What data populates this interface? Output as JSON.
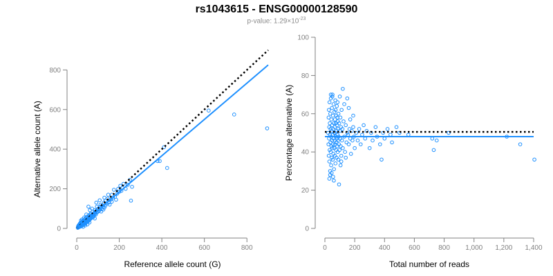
{
  "header": {
    "title": "rs1043615 - ENSG00000128590",
    "pvalue_prefix": "p-value: 1.29×10",
    "pvalue_exp": "-23"
  },
  "colors": {
    "points": "#1e90ff",
    "fit_line": "#1e90ff",
    "reference_line": "#000000",
    "axis": "#808080"
  },
  "chart_data": [
    {
      "type": "scatter",
      "title": "",
      "xlabel": "Reference allele count (G)",
      "ylabel": "Alternative allele count (A)",
      "xlim": [
        0,
        900
      ],
      "ylim": [
        0,
        850
      ],
      "xticks": [
        0,
        200,
        400,
        600,
        800
      ],
      "yticks": [
        0,
        200,
        400,
        600,
        800
      ],
      "xtick_labels": [
        "0",
        "200",
        "400",
        "600",
        "800"
      ],
      "ytick_labels": [
        "0",
        "200",
        "400",
        "600",
        "800"
      ],
      "reference_line": {
        "style": "dotted",
        "x": [
          0,
          900
        ],
        "y": [
          0,
          900
        ]
      },
      "fit_line": {
        "style": "solid",
        "x": [
          0,
          900
        ],
        "y": [
          0,
          825
        ]
      },
      "points": [
        [
          5,
          3
        ],
        [
          6,
          8
        ],
        [
          7,
          12
        ],
        [
          8,
          5
        ],
        [
          9,
          15
        ],
        [
          10,
          10
        ],
        [
          11,
          18
        ],
        [
          12,
          7
        ],
        [
          13,
          20
        ],
        [
          14,
          12
        ],
        [
          15,
          25
        ],
        [
          16,
          9
        ],
        [
          17,
          14
        ],
        [
          18,
          22
        ],
        [
          19,
          30
        ],
        [
          20,
          16
        ],
        [
          21,
          11
        ],
        [
          22,
          27
        ],
        [
          23,
          19
        ],
        [
          24,
          33
        ],
        [
          25,
          14
        ],
        [
          26,
          24
        ],
        [
          27,
          36
        ],
        [
          28,
          21
        ],
        [
          29,
          17
        ],
        [
          30,
          29
        ],
        [
          31,
          40
        ],
        [
          32,
          25
        ],
        [
          33,
          20
        ],
        [
          34,
          38
        ],
        [
          35,
          30
        ],
        [
          36,
          45
        ],
        [
          37,
          28
        ],
        [
          38,
          22
        ],
        [
          39,
          35
        ],
        [
          40,
          50
        ],
        [
          41,
          33
        ],
        [
          42,
          26
        ],
        [
          43,
          42
        ],
        [
          44,
          37
        ],
        [
          45,
          55
        ],
        [
          46,
          31
        ],
        [
          47,
          40
        ],
        [
          48,
          48
        ],
        [
          49,
          36
        ],
        [
          50,
          60
        ],
        [
          51,
          43
        ],
        [
          52,
          34
        ],
        [
          53,
          52
        ],
        [
          54,
          46
        ],
        [
          55,
          38
        ],
        [
          56,
          58
        ],
        [
          57,
          49
        ],
        [
          58,
          41
        ],
        [
          59,
          65
        ],
        [
          60,
          53
        ],
        [
          61,
          45
        ],
        [
          62,
          70
        ],
        [
          63,
          56
        ],
        [
          64,
          48
        ],
        [
          65,
          62
        ],
        [
          66,
          75
        ],
        [
          67,
          51
        ],
        [
          68,
          59
        ],
        [
          70,
          64
        ],
        [
          72,
          55
        ],
        [
          74,
          68
        ],
        [
          75,
          85
        ],
        [
          76,
          60
        ],
        [
          78,
          72
        ],
        [
          80,
          66
        ],
        [
          82,
          78
        ],
        [
          84,
          70
        ],
        [
          85,
          92
        ],
        [
          86,
          75
        ],
        [
          88,
          82
        ],
        [
          90,
          70
        ],
        [
          92,
          88
        ],
        [
          95,
          80
        ],
        [
          98,
          95
        ],
        [
          100,
          85
        ],
        [
          102,
          100
        ],
        [
          105,
          90
        ],
        [
          108,
          108
        ],
        [
          110,
          95
        ],
        [
          112,
          120
        ],
        [
          115,
          105
        ],
        [
          118,
          98
        ],
        [
          120,
          115
        ],
        [
          125,
          110
        ],
        [
          128,
          130
        ],
        [
          130,
          105
        ],
        [
          135,
          140
        ],
        [
          140,
          125
        ],
        [
          145,
          150
        ],
        [
          150,
          130
        ],
        [
          155,
          120
        ],
        [
          160,
          145
        ],
        [
          165,
          170
        ],
        [
          170,
          155
        ],
        [
          175,
          195
        ],
        [
          180,
          160
        ],
        [
          185,
          145
        ],
        [
          190,
          175
        ],
        [
          195,
          200
        ],
        [
          200,
          185
        ],
        [
          205,
          215
        ],
        [
          210,
          190
        ],
        [
          215,
          205
        ],
        [
          220,
          225
        ],
        [
          230,
          200
        ],
        [
          240,
          220
        ],
        [
          250,
          245
        ],
        [
          255,
          140
        ],
        [
          260,
          210
        ],
        [
          55,
          110
        ],
        [
          62,
          92
        ],
        [
          72,
          100
        ],
        [
          78,
          58
        ],
        [
          92,
          130
        ],
        [
          108,
          142
        ],
        [
          125,
          95
        ],
        [
          148,
          170
        ],
        [
          60,
          30
        ],
        [
          45,
          70
        ],
        [
          35,
          55
        ],
        [
          85,
          50
        ],
        [
          95,
          110
        ],
        [
          115,
          85
        ],
        [
          135,
          115
        ],
        [
          30,
          8
        ],
        [
          40,
          15
        ],
        [
          50,
          20
        ],
        [
          20,
          40
        ],
        [
          25,
          45
        ],
        [
          130,
          155
        ],
        [
          165,
          135
        ],
        [
          380,
          340
        ],
        [
          390,
          340
        ],
        [
          410,
          410
        ],
        [
          425,
          305
        ],
        [
          620,
          595
        ],
        [
          740,
          575
        ],
        [
          895,
          505
        ]
      ]
    },
    {
      "type": "scatter",
      "title": "",
      "xlabel": "Total number of reads",
      "ylabel": "Percentage alternative (A)",
      "xlim": [
        0,
        1400
      ],
      "ylim": [
        0,
        100
      ],
      "xticks": [
        0,
        200,
        400,
        600,
        800,
        1000,
        1200,
        1400
      ],
      "yticks": [
        0,
        20,
        40,
        60,
        80,
        100
      ],
      "xtick_labels": [
        "0",
        "200",
        "400",
        "600",
        "800",
        "1,000",
        "1,200",
        "1,400"
      ],
      "ytick_labels": [
        "0",
        "20",
        "40",
        "60",
        "80",
        "100"
      ],
      "reference_line": {
        "style": "dotted",
        "y": 50.5
      },
      "fit_line": {
        "style": "solid",
        "y": 48
      },
      "points": [
        [
          22,
          50
        ],
        [
          24,
          44
        ],
        [
          25,
          58
        ],
        [
          26,
          38
        ],
        [
          27,
          62
        ],
        [
          28,
          47
        ],
        [
          29,
          53
        ],
        [
          30,
          35
        ],
        [
          31,
          66
        ],
        [
          32,
          41
        ],
        [
          33,
          55
        ],
        [
          34,
          49
        ],
        [
          35,
          30
        ],
        [
          36,
          60
        ],
        [
          37,
          45
        ],
        [
          38,
          52
        ],
        [
          39,
          40
        ],
        [
          40,
          68
        ],
        [
          41,
          48
        ],
        [
          42,
          33
        ],
        [
          43,
          57
        ],
        [
          44,
          43
        ],
        [
          45,
          51
        ],
        [
          46,
          37
        ],
        [
          47,
          63
        ],
        [
          48,
          46
        ],
        [
          49,
          54
        ],
        [
          50,
          42
        ],
        [
          51,
          70
        ],
        [
          52,
          49
        ],
        [
          53,
          36
        ],
        [
          54,
          59
        ],
        [
          55,
          44
        ],
        [
          56,
          52
        ],
        [
          57,
          39
        ],
        [
          58,
          65
        ],
        [
          59,
          47
        ],
        [
          60,
          55
        ],
        [
          61,
          31
        ],
        [
          62,
          50
        ],
        [
          63,
          42
        ],
        [
          64,
          61
        ],
        [
          65,
          46
        ],
        [
          66,
          53
        ],
        [
          67,
          38
        ],
        [
          68,
          57
        ],
        [
          69,
          44
        ],
        [
          70,
          50
        ],
        [
          71,
          34
        ],
        [
          72,
          62
        ],
        [
          73,
          48
        ],
        [
          74,
          55
        ],
        [
          75,
          41
        ],
        [
          76,
          59
        ],
        [
          77,
          45
        ],
        [
          78,
          51
        ],
        [
          79,
          37
        ],
        [
          80,
          64
        ],
        [
          81,
          47
        ],
        [
          82,
          54
        ],
        [
          83,
          43
        ],
        [
          84,
          58
        ],
        [
          85,
          49
        ],
        [
          86,
          40
        ],
        [
          87,
          56
        ],
        [
          88,
          46
        ],
        [
          89,
          52
        ],
        [
          90,
          36
        ],
        [
          91,
          60
        ],
        [
          92,
          48
        ],
        [
          94,
          44
        ],
        [
          96,
          55
        ],
        [
          98,
          41
        ],
        [
          100,
          51
        ],
        [
          102,
          47
        ],
        [
          104,
          58
        ],
        [
          106,
          43
        ],
        [
          108,
          53
        ],
        [
          110,
          38
        ],
        [
          112,
          62
        ],
        [
          115,
          46
        ],
        [
          118,
          52
        ],
        [
          120,
          42
        ],
        [
          125,
          56
        ],
        [
          130,
          48
        ],
        [
          135,
          40
        ],
        [
          140,
          54
        ],
        [
          145,
          45
        ],
        [
          150,
          50
        ],
        [
          155,
          49
        ],
        [
          160,
          44
        ],
        [
          165,
          52
        ],
        [
          170,
          47
        ],
        [
          175,
          39
        ],
        [
          180,
          51
        ],
        [
          185,
          46
        ],
        [
          190,
          53
        ],
        [
          195,
          48
        ],
        [
          200,
          42
        ],
        [
          210,
          50
        ],
        [
          30,
          26
        ],
        [
          35,
          28
        ],
        [
          45,
          29
        ],
        [
          55,
          27
        ],
        [
          60,
          25
        ],
        [
          95,
          23
        ],
        [
          120,
          73
        ],
        [
          40,
          70
        ],
        [
          50,
          69
        ],
        [
          70,
          67
        ],
        [
          85,
          66
        ],
        [
          100,
          69
        ],
        [
          130,
          65
        ],
        [
          150,
          68
        ],
        [
          160,
          63
        ],
        [
          105,
          33
        ],
        [
          110,
          35
        ],
        [
          140,
          37
        ],
        [
          170,
          57
        ],
        [
          190,
          59
        ],
        [
          220,
          46
        ],
        [
          230,
          52
        ],
        [
          240,
          44
        ],
        [
          250,
          49
        ],
        [
          260,
          54
        ],
        [
          270,
          47
        ],
        [
          280,
          51
        ],
        [
          300,
          42
        ],
        [
          310,
          50
        ],
        [
          320,
          46
        ],
        [
          340,
          53
        ],
        [
          350,
          48
        ],
        [
          370,
          44
        ],
        [
          390,
          50
        ],
        [
          380,
          36
        ],
        [
          400,
          47
        ],
        [
          420,
          52
        ],
        [
          440,
          49
        ],
        [
          450,
          45
        ],
        [
          480,
          53
        ],
        [
          500,
          50
        ],
        [
          560,
          49
        ],
        [
          720,
          47
        ],
        [
          730,
          41
        ],
        [
          750,
          46
        ],
        [
          830,
          50
        ],
        [
          1220,
          48
        ],
        [
          1310,
          44
        ],
        [
          1405,
          36
        ]
      ]
    }
  ]
}
